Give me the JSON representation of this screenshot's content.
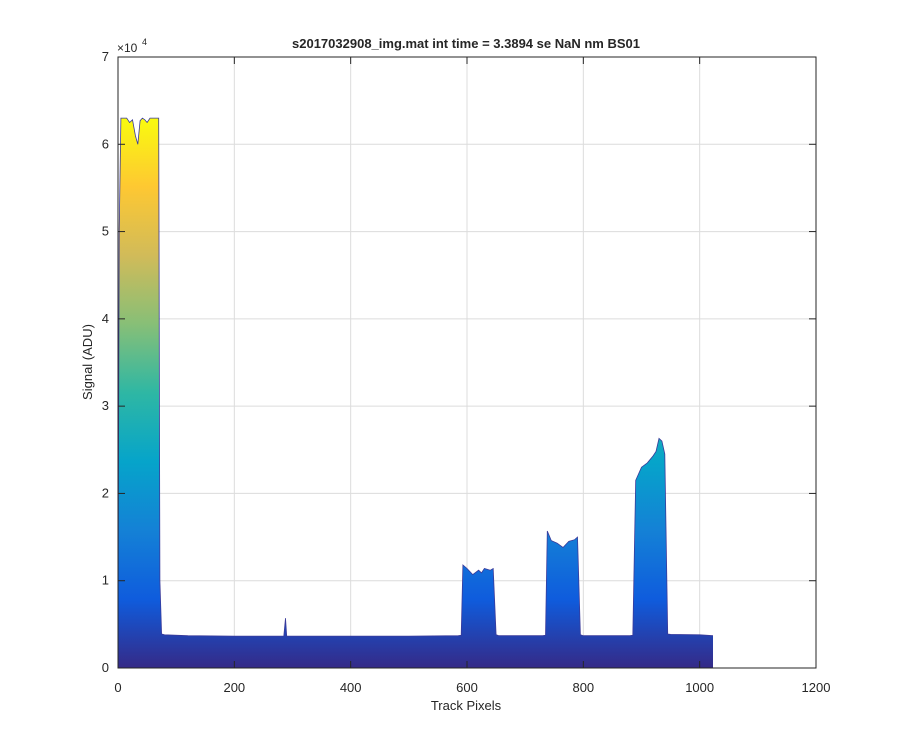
{
  "chart_data": {
    "type": "area",
    "title": "s2017032908_img.mat int time = 3.3894 se  NaN nm BS01",
    "xlabel": "Track Pixels",
    "ylabel": "Signal (ADU)",
    "xlim": [
      0,
      1200
    ],
    "ylim": [
      0,
      70000
    ],
    "xticks": [
      0,
      200,
      400,
      600,
      800,
      1000,
      1200
    ],
    "xtick_labels": [
      "0",
      "200",
      "400",
      "600",
      "800",
      "1000",
      "1200"
    ],
    "yticks": [
      0,
      10000,
      20000,
      30000,
      40000,
      50000,
      60000,
      70000
    ],
    "ytick_labels": [
      "0",
      "1",
      "2",
      "3",
      "4",
      "5",
      "6",
      "7"
    ],
    "y_exponent_base": "×10",
    "y_exponent_power": "4",
    "grid": true,
    "colormap": [
      "#352a87",
      "#0f5cdd",
      "#1481d6",
      "#06a4ca",
      "#2eb7a4",
      "#87bf77",
      "#d1bb59",
      "#fec832",
      "#f9fb0e"
    ],
    "series": [
      {
        "x": [
          0,
          2,
          5,
          10,
          15,
          20,
          25,
          30,
          34,
          38,
          42,
          46,
          50,
          55,
          60,
          65,
          70,
          72,
          75,
          80,
          120,
          200,
          285,
          288,
          290,
          292,
          295,
          400,
          500,
          585,
          590,
          593,
          600,
          610,
          620,
          625,
          630,
          640,
          645,
          650,
          655,
          660,
          700,
          730,
          735,
          738,
          745,
          755,
          765,
          775,
          785,
          790,
          795,
          800,
          860,
          880,
          885,
          890,
          900,
          910,
          920,
          925,
          930,
          935,
          940,
          945,
          950,
          1000,
          1023
        ],
        "y": [
          3800,
          50000,
          63000,
          63000,
          63000,
          62500,
          62800,
          61000,
          60000,
          62700,
          63000,
          62800,
          62500,
          63000,
          63000,
          63000,
          63000,
          10000,
          3900,
          3800,
          3700,
          3650,
          3650,
          5700,
          3650,
          3650,
          3650,
          3650,
          3650,
          3700,
          3750,
          11800,
          11400,
          10700,
          11200,
          10900,
          11400,
          11200,
          11400,
          3800,
          3700,
          3700,
          3700,
          3700,
          3750,
          15700,
          14600,
          14300,
          13800,
          14500,
          14700,
          15000,
          3800,
          3700,
          3700,
          3700,
          3750,
          21500,
          23000,
          23500,
          24300,
          24800,
          26300,
          26000,
          24500,
          3900,
          3850,
          3800,
          3700
        ]
      }
    ]
  }
}
